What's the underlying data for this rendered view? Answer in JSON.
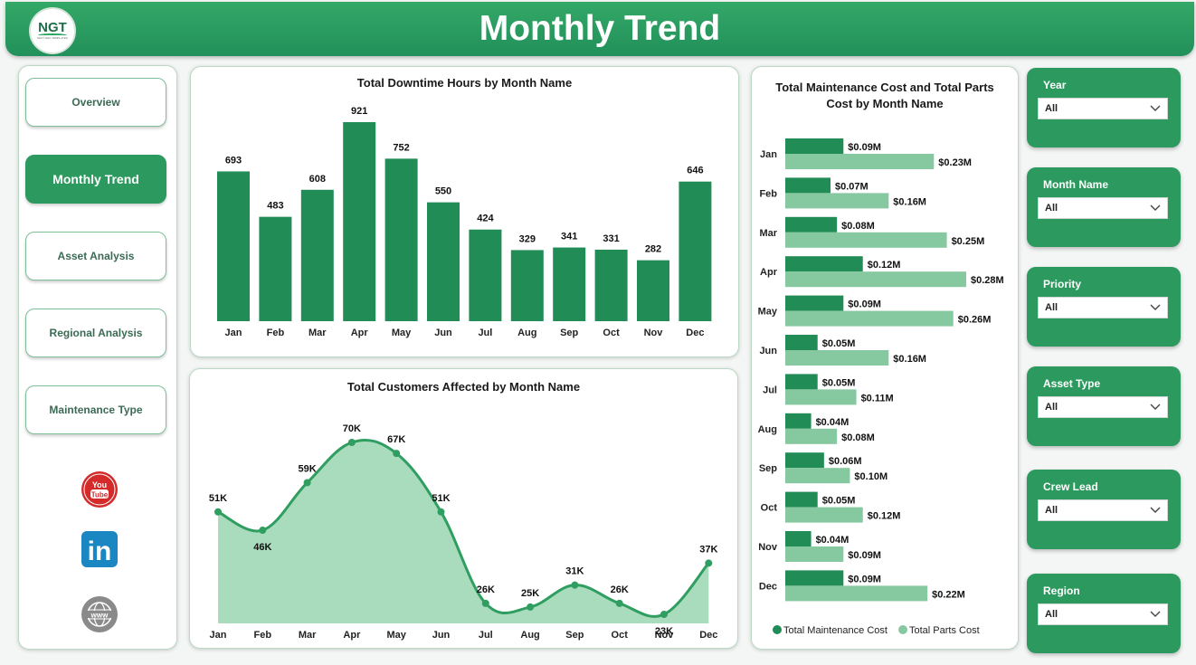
{
  "header": {
    "title": "Monthly Trend",
    "logo_text": "NGT",
    "logo_subtext": "NEXT GEN TEMPLATES"
  },
  "nav": {
    "items": [
      {
        "label": "Overview",
        "active": false
      },
      {
        "label": "Monthly Trend",
        "active": true
      },
      {
        "label": "Asset Analysis",
        "active": false
      },
      {
        "label": "Regional Analysis",
        "active": false
      },
      {
        "label": "Maintenance Type",
        "active": false
      }
    ],
    "social": [
      {
        "icon": "youtube-icon",
        "text": "You Tube"
      },
      {
        "icon": "linkedin-icon",
        "text": "in"
      },
      {
        "icon": "website-icon",
        "text": "www"
      }
    ]
  },
  "colors": {
    "primary": "#2c9a5e",
    "bar_dark": "#228c56",
    "bar_light": "#86c8a0",
    "area_fill": "#a9dbbd",
    "line": "#2f9e60"
  },
  "chart_data": [
    {
      "type": "bar",
      "title": "Total Downtime Hours by Month Name",
      "categories": [
        "Jan",
        "Feb",
        "Mar",
        "Apr",
        "May",
        "Jun",
        "Jul",
        "Aug",
        "Sep",
        "Oct",
        "Nov",
        "Dec"
      ],
      "values": [
        693,
        483,
        608,
        921,
        752,
        550,
        424,
        329,
        341,
        331,
        282,
        646
      ],
      "labels": [
        "693",
        "483",
        "608",
        "921",
        "752",
        "550",
        "424",
        "329",
        "341",
        "331",
        "282",
        "646"
      ]
    },
    {
      "type": "area",
      "title": "Total Customers Affected by Month Name",
      "categories": [
        "Jan",
        "Feb",
        "Mar",
        "Apr",
        "May",
        "Jun",
        "Jul",
        "Aug",
        "Sep",
        "Oct",
        "Nov",
        "Dec"
      ],
      "values": [
        51000,
        46000,
        59000,
        70000,
        67000,
        51000,
        26000,
        25000,
        31000,
        26000,
        23000,
        37000
      ],
      "labels": [
        "51K",
        "46K",
        "59K",
        "70K",
        "67K",
        "51K",
        "26K",
        "25K",
        "31K",
        "26K",
        "23K",
        "37K"
      ]
    },
    {
      "type": "bar",
      "orientation": "horizontal",
      "title_lines": [
        "Total Maintenance Cost and Total Parts",
        "Cost by Month Name"
      ],
      "categories": [
        "Jan",
        "Feb",
        "Mar",
        "Apr",
        "May",
        "Jun",
        "Jul",
        "Aug",
        "Sep",
        "Oct",
        "Nov",
        "Dec"
      ],
      "series": [
        {
          "name": "Total Maintenance Cost",
          "values": [
            0.09,
            0.07,
            0.08,
            0.12,
            0.09,
            0.05,
            0.05,
            0.04,
            0.06,
            0.05,
            0.04,
            0.09
          ],
          "labels": [
            "$0.09M",
            "$0.07M",
            "$0.08M",
            "$0.12M",
            "$0.09M",
            "$0.05M",
            "$0.05M",
            "$0.04M",
            "$0.06M",
            "$0.05M",
            "$0.04M",
            "$0.09M"
          ]
        },
        {
          "name": "Total Parts Cost",
          "values": [
            0.23,
            0.16,
            0.25,
            0.28,
            0.26,
            0.16,
            0.11,
            0.08,
            0.1,
            0.12,
            0.09,
            0.22
          ],
          "labels": [
            "$0.23M",
            "$0.16M",
            "$0.25M",
            "$0.28M",
            "$0.26M",
            "$0.16M",
            "$0.11M",
            "$0.08M",
            "$0.10M",
            "$0.12M",
            "$0.09M",
            "$0.22M"
          ]
        }
      ],
      "legend": "bottom"
    }
  ],
  "filters": [
    {
      "label": "Year",
      "value": "All"
    },
    {
      "label": "Month Name",
      "value": "All"
    },
    {
      "label": "Priority",
      "value": "All"
    },
    {
      "label": "Asset Type",
      "value": "All"
    },
    {
      "label": "Crew Lead",
      "value": "All"
    },
    {
      "label": "Region",
      "value": "All"
    }
  ]
}
